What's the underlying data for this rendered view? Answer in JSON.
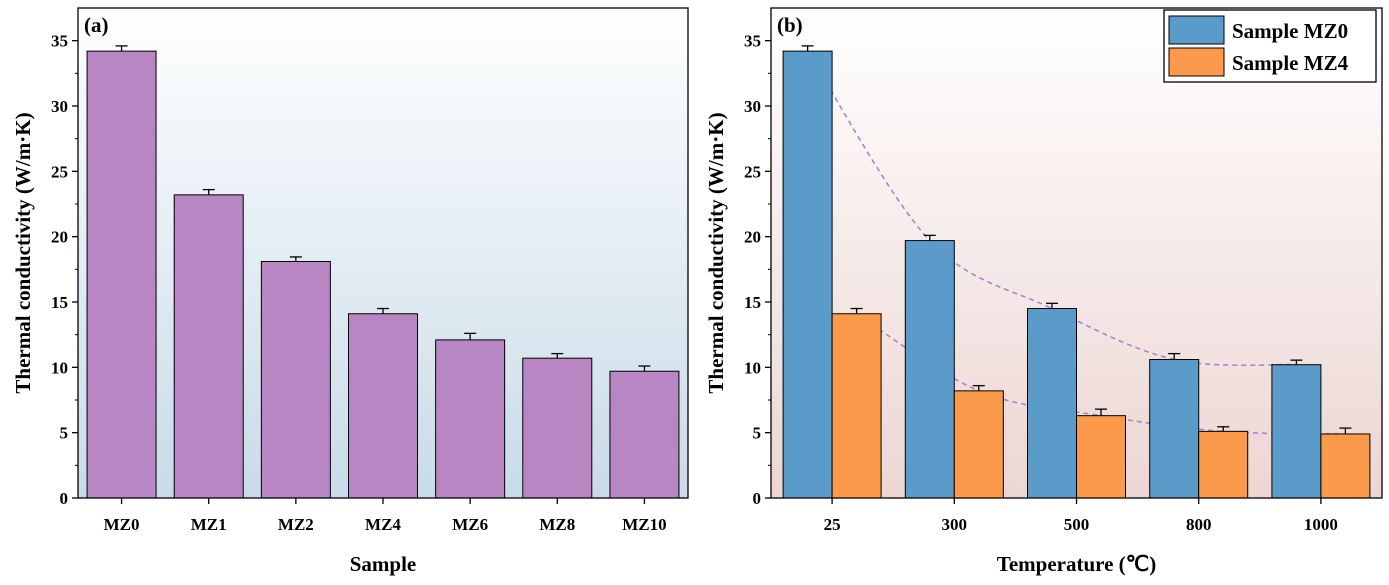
{
  "chart_data": [
    {
      "type": "bar",
      "panel_label": "(a)",
      "xlabel": "Sample",
      "ylabel": "Thermal conductivity (W/m·K)",
      "ylim": [
        0,
        37.5
      ],
      "yticks": [
        0,
        5,
        10,
        15,
        20,
        25,
        30,
        35
      ],
      "categories": [
        "MZ0",
        "MZ1",
        "MZ2",
        "MZ4",
        "MZ6",
        "MZ8",
        "MZ10"
      ],
      "values": [
        34.2,
        23.2,
        18.1,
        14.1,
        12.1,
        10.7,
        9.7
      ],
      "errors": [
        0.4,
        0.4,
        0.35,
        0.4,
        0.5,
        0.35,
        0.4
      ],
      "bar_color": "#b886c3",
      "background_gradient": [
        "#ffffff",
        "#c8dbe8"
      ],
      "grid": false
    },
    {
      "type": "bar",
      "panel_label": "(b)",
      "xlabel": "Temperature (℃)",
      "ylabel": "Thermal conductivity (W/m·K)",
      "ylim": [
        0,
        37.5
      ],
      "yticks": [
        0,
        5,
        10,
        15,
        20,
        25,
        30,
        35
      ],
      "categories": [
        "25",
        "300",
        "500",
        "800",
        "1000"
      ],
      "series": [
        {
          "name": "Sample MZ0",
          "values": [
            34.2,
            19.7,
            14.5,
            10.6,
            10.2
          ],
          "errors": [
            0.4,
            0.4,
            0.4,
            0.45,
            0.35
          ],
          "color": "#5b9bc9"
        },
        {
          "name": "Sample MZ4",
          "values": [
            14.1,
            8.2,
            6.3,
            5.1,
            4.9
          ],
          "errors": [
            0.4,
            0.4,
            0.5,
            0.35,
            0.45
          ],
          "color": "#fb9a4a"
        }
      ],
      "trend_line_color": "#b07fd0",
      "legend_position": "top-right",
      "background_gradient": [
        "#ffffff",
        "#ecd6d3"
      ],
      "grid": false
    }
  ]
}
